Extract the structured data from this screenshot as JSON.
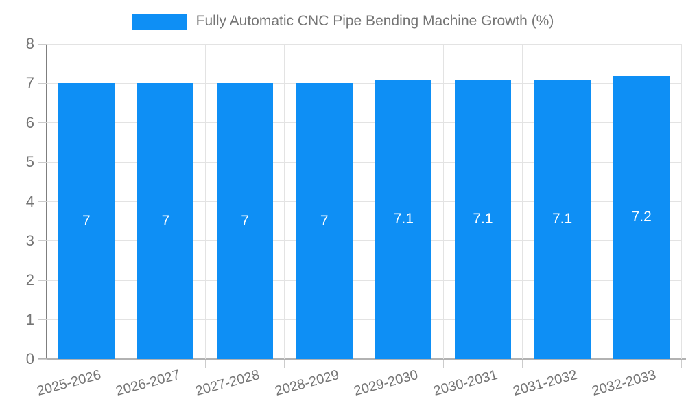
{
  "chart_data": {
    "type": "bar",
    "title": "Fully Automatic CNC Pipe Bending Machine Growth (%)",
    "categories": [
      "2025-2026",
      "2026-2027",
      "2027-2028",
      "2028-2029",
      "2029-2030",
      "2030-2031",
      "2031-2032",
      "2032-2033"
    ],
    "values": [
      7,
      7,
      7,
      7,
      7.1,
      7.1,
      7.1,
      7.2
    ],
    "bar_labels": [
      "7",
      "7",
      "7",
      "7",
      "7.1",
      "7.1",
      "7.1",
      "7.2"
    ],
    "xlabel": "",
    "ylabel": "",
    "ylim": [
      0,
      8
    ],
    "y_ticks": [
      0,
      1,
      2,
      3,
      4,
      5,
      6,
      7,
      8
    ],
    "grid": true,
    "legend_position": "top",
    "x_label_rotation_deg": -15,
    "colors": {
      "bar": "#0e8ff5",
      "bar_value_text": "#ffffff",
      "tick_text": "#757575",
      "legend_text": "#757575",
      "gridline": "#e3e3e3",
      "tick_mark": "#cccccc",
      "y_axis_line": "#7f7f7f",
      "x_axis_line": "#b2b2b2",
      "background": "#ffffff"
    }
  }
}
